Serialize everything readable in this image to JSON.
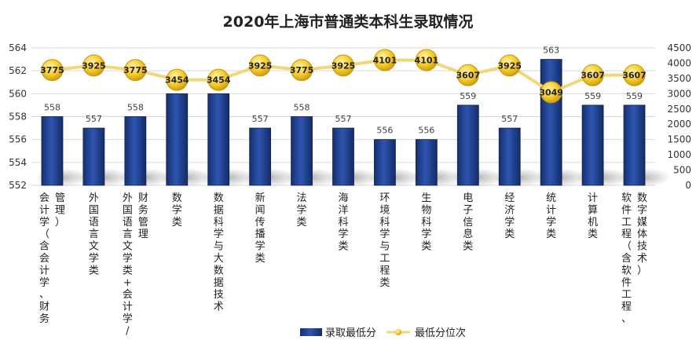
{
  "chart_data": {
    "title": "2020年上海市普通类本科生录取情况",
    "type": "bar",
    "categories": [
      [
        "会计学（含会计学、财务",
        "管理）"
      ],
      [
        "外国语言文学类"
      ],
      [
        "外国语言文学类+会计学/",
        "财务管理"
      ],
      [
        "数学类"
      ],
      [
        "数据科学与大数据技术"
      ],
      [
        "新闻传播学类"
      ],
      [
        "法学类"
      ],
      [
        "海洋科学类"
      ],
      [
        "环境科学与工程类"
      ],
      [
        "生物科学类"
      ],
      [
        "电子信息类"
      ],
      [
        "经济学类"
      ],
      [
        "统计学类"
      ],
      [
        "计算机类"
      ],
      [
        "软件工程（含软件工程、",
        "数字媒体技术）"
      ]
    ],
    "series": [
      {
        "name": "录取最低分",
        "type": "bar",
        "axis": "left",
        "color": "#1f3f8f",
        "values": [
          558,
          557,
          558,
          560,
          560,
          557,
          558,
          557,
          556,
          556,
          559,
          557,
          563,
          559,
          559
        ]
      },
      {
        "name": "最低分位次",
        "type": "line",
        "axis": "right",
        "color": "#f2d77a",
        "marker_color": "#f0c419",
        "values": [
          3775,
          3925,
          3775,
          3454,
          3454,
          3925,
          3775,
          3925,
          4101,
          4101,
          3607,
          3925,
          3049,
          3607,
          3607
        ]
      }
    ],
    "y_left": {
      "min": 552,
      "max": 564,
      "ticks": [
        552,
        554,
        556,
        558,
        560,
        562,
        564
      ]
    },
    "y_right": {
      "min": 0,
      "max": 4500,
      "ticks": [
        0,
        500,
        1000,
        1500,
        2000,
        2500,
        3000,
        3500,
        4000,
        4500
      ]
    },
    "grid": true,
    "legend_position": "bottom-center"
  }
}
